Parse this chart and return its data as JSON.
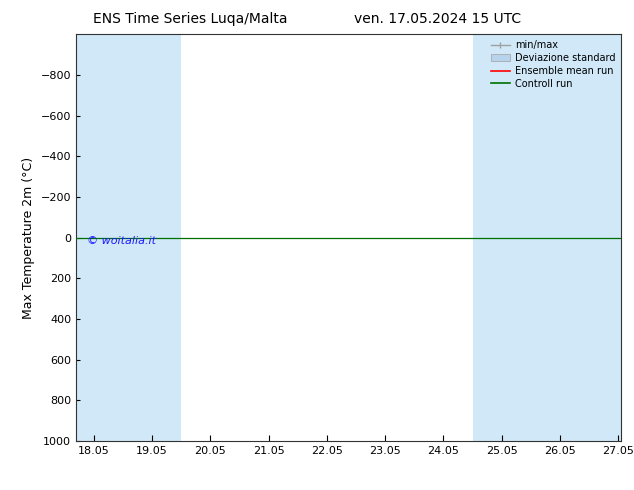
{
  "title_left": "ENS Time Series Luqa/Malta",
  "title_right": "ven. 17.05.2024 15 UTC",
  "xlabel_ticks": [
    "18.05",
    "19.05",
    "20.05",
    "21.05",
    "22.05",
    "23.05",
    "24.05",
    "25.05",
    "26.05",
    "27.05"
  ],
  "ylabel": "Max Temperature 2m (°C)",
  "ylim_top": -1000,
  "ylim_bottom": 1000,
  "yticks": [
    -800,
    -600,
    -400,
    -200,
    0,
    200,
    400,
    600,
    800,
    1000
  ],
  "background_color": "#ffffff",
  "plot_bg_color": "#ffffff",
  "shade_color": "#d0e8f8",
  "shade_alpha": 1.0,
  "shade_x_ranges": [
    [
      17.75,
      18.75
    ],
    [
      18.75,
      19.75
    ],
    [
      24.75,
      25.75
    ],
    [
      25.75,
      26.5
    ],
    [
      26.5,
      27.1
    ]
  ],
  "x_min": 17.75,
  "x_max": 27.1,
  "control_run_value": 0,
  "control_run_color": "#007000",
  "ensemble_mean_color": "#ff0000",
  "watermark_text": "© woitalia.it",
  "watermark_color": "#1a1aff",
  "legend_labels": [
    "min/max",
    "Deviazione standard",
    "Ensemble mean run",
    "Controll run"
  ],
  "minmax_color": "#a0a0a0",
  "dev_std_color": "#b8d4ec",
  "font_size_title": 10,
  "font_size_tick": 8,
  "font_size_legend": 7,
  "font_size_ylabel": 9,
  "font_size_watermark": 8
}
